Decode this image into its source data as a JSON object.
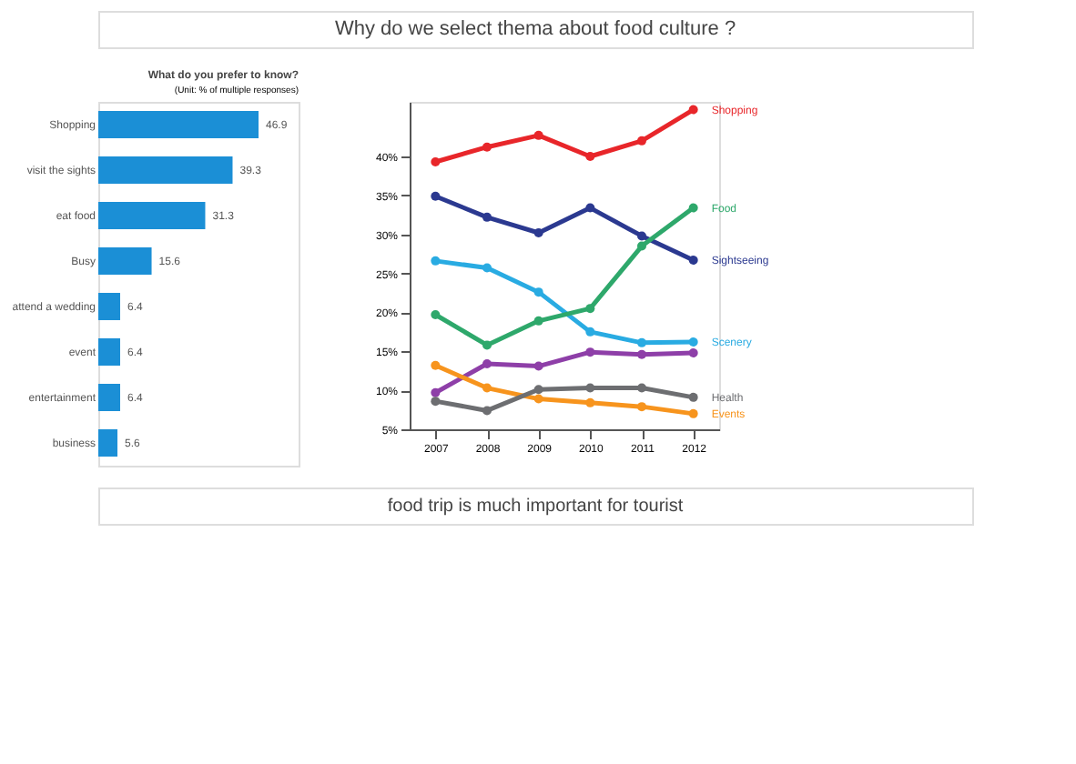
{
  "chart_data": [
    {
      "type": "bar",
      "orientation": "horizontal",
      "title": "What do you prefer to know?",
      "subtitle": "(Unit: % of multiple responses)",
      "categories": [
        "Shopping",
        "visit the sights",
        "eat food",
        "Busy",
        "attend a wedding",
        "event",
        "entertainment",
        "business"
      ],
      "values": [
        46.9,
        39.3,
        31.3,
        15.6,
        6.4,
        6.4,
        6.4,
        5.6
      ],
      "color": "#1b8fd6",
      "data_labels": true,
      "annotations": [
        "Why do we select thema about food culture ?",
        "food trip is much important for tourist"
      ]
    },
    {
      "type": "line",
      "categories": [
        "2007",
        "2008",
        "2009",
        "2010",
        "2011",
        "2012"
      ],
      "series": [
        {
          "name": "Shopping",
          "color": "#e8262a",
          "values": [
            39.3,
            41.2,
            42.7,
            40.0,
            42.0,
            46.0
          ]
        },
        {
          "name": "Sightseeing",
          "color": "#2b3990",
          "values": [
            34.9,
            32.2,
            30.2,
            33.4,
            29.8,
            26.7
          ]
        },
        {
          "name": "Scenery",
          "color": "#29abe2",
          "values": [
            26.6,
            25.7,
            22.6,
            17.5,
            16.1,
            16.2
          ]
        },
        {
          "name": "Food",
          "color": "#2ea86b",
          "values": [
            19.7,
            15.8,
            18.9,
            20.5,
            28.5,
            33.4
          ]
        },
        {
          "name": null,
          "color": "#8e3fa8",
          "values": [
            9.7,
            13.4,
            13.1,
            14.9,
            14.6,
            14.8
          ]
        },
        {
          "name": "Events",
          "color": "#f7941d",
          "values": [
            13.2,
            10.3,
            8.9,
            8.4,
            7.9,
            7.0
          ]
        },
        {
          "name": "Health",
          "color": "#6d6e71",
          "values": [
            8.6,
            7.4,
            10.1,
            10.3,
            10.3,
            9.1
          ]
        }
      ],
      "ylim": [
        5,
        47
      ],
      "yticks": [
        {
          "value": 5,
          "label": "5%"
        },
        {
          "value": 10,
          "label": "10%"
        },
        {
          "value": 15,
          "label": "15%"
        },
        {
          "value": 20,
          "label": "20%"
        },
        {
          "value": 25,
          "label": "25%"
        },
        {
          "value": 30,
          "label": "30%"
        },
        {
          "value": 35,
          "label": "35%"
        },
        {
          "value": 40,
          "label": "40%"
        }
      ],
      "marker": "circle",
      "line_style": "solid"
    }
  ]
}
